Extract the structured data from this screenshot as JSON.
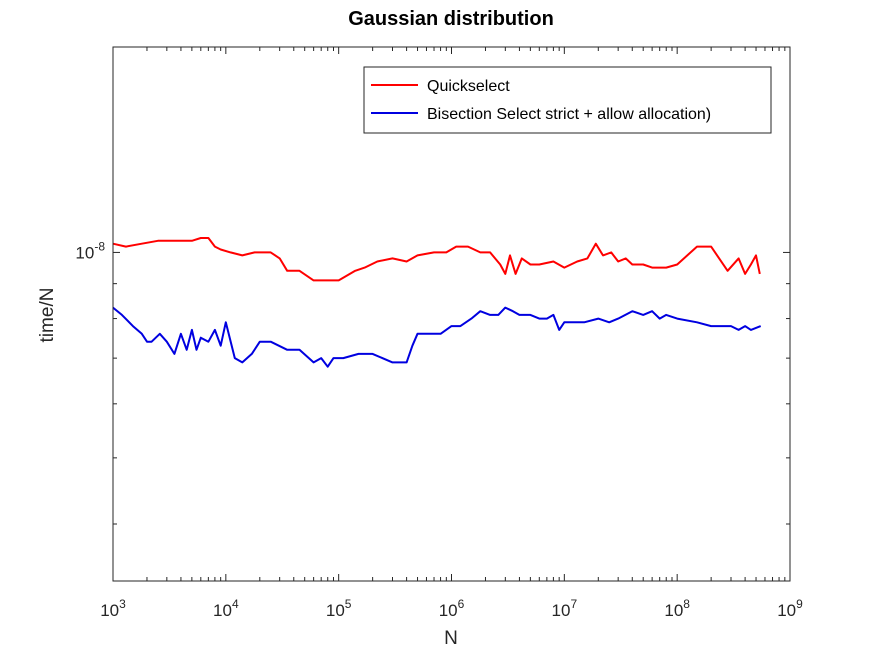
{
  "chart_data": {
    "type": "line",
    "title": "Gaussian distribution",
    "xlabel": "N",
    "ylabel": "time/N",
    "xscale": "log",
    "yscale": "log",
    "xlim": [
      1000,
      1000000000
    ],
    "ylim": [
      3.3e-09,
      2e-08
    ],
    "grid": false,
    "legend_location": "top-right",
    "x_ticks": [
      {
        "value": 1000,
        "base": "10",
        "exp": "3"
      },
      {
        "value": 10000,
        "base": "10",
        "exp": "4"
      },
      {
        "value": 100000,
        "base": "10",
        "exp": "5"
      },
      {
        "value": 1000000,
        "base": "10",
        "exp": "6"
      },
      {
        "value": 10000000,
        "base": "10",
        "exp": "7"
      },
      {
        "value": 100000000,
        "base": "10",
        "exp": "8"
      },
      {
        "value": 1000000000,
        "base": "10",
        "exp": "9"
      }
    ],
    "y_ticks": [
      {
        "value": 1e-08,
        "base": "10",
        "exp": "-8"
      }
    ],
    "series": [
      {
        "name": "Quickselect",
        "color": "#ff0000",
        "x": [
          1000,
          1300,
          1800,
          2500,
          3500,
          5000,
          6000,
          7000,
          8000,
          9000,
          11000,
          14000,
          18000,
          25000,
          30000,
          35000,
          45000,
          60000,
          70000,
          100000,
          140000,
          170000,
          220000,
          300000,
          400000,
          500000,
          700000,
          900000,
          1100000,
          1400000,
          1800000,
          2200000,
          2700000,
          3000000,
          3300000,
          3700000,
          4200000,
          5000000,
          6000000,
          8000000,
          10000000,
          13000000,
          16000000,
          19000000,
          22000000,
          26000000,
          30000000,
          35000000,
          40000000,
          50000000,
          60000000,
          80000000,
          100000000,
          150000000,
          200000000,
          280000000,
          350000000,
          400000000,
          450000000,
          500000000,
          540000000
        ],
        "values": [
          1.03e-08,
          1.02e-08,
          1.03e-08,
          1.04e-08,
          1.04e-08,
          1.04e-08,
          1.05e-08,
          1.05e-08,
          1.02e-08,
          1.01e-08,
          1e-08,
          9.9e-09,
          1e-08,
          1e-08,
          9.8e-09,
          9.4e-09,
          9.4e-09,
          9.1e-09,
          9.1e-09,
          9.1e-09,
          9.4e-09,
          9.5e-09,
          9.7e-09,
          9.8e-09,
          9.7e-09,
          9.9e-09,
          1e-08,
          1e-08,
          1.02e-08,
          1.02e-08,
          1e-08,
          1e-08,
          9.6e-09,
          9.3e-09,
          9.9e-09,
          9.3e-09,
          9.8e-09,
          9.6e-09,
          9.6e-09,
          9.7e-09,
          9.5e-09,
          9.7e-09,
          9.8e-09,
          1.03e-08,
          9.9e-09,
          1e-08,
          9.7e-09,
          9.8e-09,
          9.6e-09,
          9.6e-09,
          9.5e-09,
          9.5e-09,
          9.6e-09,
          1.02e-08,
          1.02e-08,
          9.4e-09,
          9.8e-09,
          9.3e-09,
          9.6e-09,
          9.9e-09,
          9.3e-09
        ]
      },
      {
        "name": "Bisection Select strict + allow allocation)",
        "color": "#0000e0",
        "x": [
          1000,
          1200,
          1500,
          1800,
          2000,
          2200,
          2600,
          3000,
          3500,
          4000,
          4500,
          5000,
          5500,
          6000,
          7000,
          8000,
          9000,
          10000,
          12000,
          14000,
          17000,
          20000,
          25000,
          35000,
          45000,
          60000,
          70000,
          80000,
          90000,
          110000,
          150000,
          200000,
          300000,
          400000,
          450000,
          500000,
          600000,
          800000,
          1000000,
          1200000,
          1500000,
          1800000,
          2200000,
          2600000,
          3000000,
          3500000,
          4000000,
          5000000,
          6000000,
          7000000,
          8000000,
          9000000,
          10000000,
          15000000,
          20000000,
          25000000,
          30000000,
          40000000,
          50000000,
          60000000,
          70000000,
          80000000,
          100000000,
          150000000,
          200000000,
          300000000,
          350000000,
          400000000,
          450000000,
          550000000
        ],
        "values": [
          8.3e-09,
          8.1e-09,
          7.8e-09,
          7.6e-09,
          7.4e-09,
          7.4e-09,
          7.6e-09,
          7.4e-09,
          7.1e-09,
          7.6e-09,
          7.2e-09,
          7.7e-09,
          7.2e-09,
          7.5e-09,
          7.4e-09,
          7.7e-09,
          7.3e-09,
          7.9e-09,
          7e-09,
          6.9e-09,
          7.1e-09,
          7.4e-09,
          7.4e-09,
          7.2e-09,
          7.2e-09,
          6.9e-09,
          7e-09,
          6.8e-09,
          7e-09,
          7e-09,
          7.1e-09,
          7.1e-09,
          6.9e-09,
          6.9e-09,
          7.3e-09,
          7.6e-09,
          7.6e-09,
          7.6e-09,
          7.8e-09,
          7.8e-09,
          8e-09,
          8.2e-09,
          8.1e-09,
          8.1e-09,
          8.3e-09,
          8.2e-09,
          8.1e-09,
          8.1e-09,
          8e-09,
          8e-09,
          8.1e-09,
          7.7e-09,
          7.9e-09,
          7.9e-09,
          8e-09,
          7.9e-09,
          8e-09,
          8.2e-09,
          8.1e-09,
          8.2e-09,
          8e-09,
          8.1e-09,
          8e-09,
          7.9e-09,
          7.8e-09,
          7.8e-09,
          7.7e-09,
          7.8e-09,
          7.7e-09,
          7.8e-09
        ]
      }
    ]
  }
}
